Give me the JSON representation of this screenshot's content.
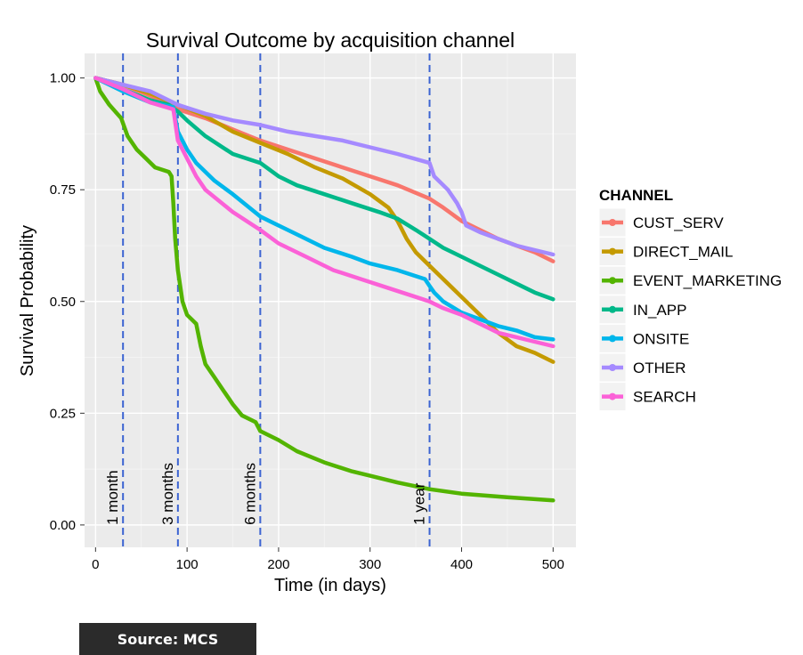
{
  "chart_data": {
    "type": "line",
    "title": "Survival Outcome by acquisition channel",
    "xlabel": "Time (in days)",
    "ylabel": "Survival Probability",
    "xlim": [
      -12,
      525
    ],
    "ylim": [
      -0.05,
      1.055
    ],
    "x_ticks": [
      0,
      100,
      200,
      300,
      400,
      500
    ],
    "x_tick_labels": [
      "0",
      "100",
      "200",
      "300",
      "400",
      "500"
    ],
    "y_ticks": [
      0,
      0.25,
      0.5,
      0.75,
      1.0
    ],
    "y_tick_labels": [
      "0.00",
      "0.25",
      "0.50",
      "0.75",
      "1.00"
    ],
    "grid": true,
    "legend_position": "right",
    "legend_title": "CHANNEL",
    "reference_lines": [
      {
        "x": 30,
        "label": "1 month"
      },
      {
        "x": 90,
        "label": "3 months"
      },
      {
        "x": 180,
        "label": "6 months"
      },
      {
        "x": 365,
        "label": "1 year"
      }
    ],
    "reference_line_color": "#3c64d2",
    "series": [
      {
        "name": "CUST_SERV",
        "color": "#f8766d",
        "points": [
          [
            0,
            1.0
          ],
          [
            30,
            0.985
          ],
          [
            60,
            0.96
          ],
          [
            90,
            0.93
          ],
          [
            120,
            0.91
          ],
          [
            150,
            0.885
          ],
          [
            180,
            0.86
          ],
          [
            210,
            0.84
          ],
          [
            240,
            0.82
          ],
          [
            270,
            0.8
          ],
          [
            300,
            0.78
          ],
          [
            330,
            0.76
          ],
          [
            365,
            0.73
          ],
          [
            380,
            0.71
          ],
          [
            400,
            0.68
          ],
          [
            420,
            0.66
          ],
          [
            440,
            0.64
          ],
          [
            460,
            0.625
          ],
          [
            480,
            0.61
          ],
          [
            500,
            0.59
          ]
        ]
      },
      {
        "name": "DIRECT_MAIL",
        "color": "#c49a00",
        "points": [
          [
            0,
            1.0
          ],
          [
            30,
            0.985
          ],
          [
            60,
            0.965
          ],
          [
            90,
            0.94
          ],
          [
            120,
            0.915
          ],
          [
            150,
            0.88
          ],
          [
            180,
            0.855
          ],
          [
            210,
            0.83
          ],
          [
            240,
            0.8
          ],
          [
            270,
            0.775
          ],
          [
            300,
            0.74
          ],
          [
            320,
            0.71
          ],
          [
            330,
            0.68
          ],
          [
            340,
            0.64
          ],
          [
            350,
            0.61
          ],
          [
            365,
            0.58
          ],
          [
            380,
            0.55
          ],
          [
            400,
            0.51
          ],
          [
            420,
            0.47
          ],
          [
            440,
            0.43
          ],
          [
            460,
            0.4
          ],
          [
            480,
            0.385
          ],
          [
            500,
            0.365
          ]
        ]
      },
      {
        "name": "EVENT_MARKETING",
        "color": "#53b400",
        "points": [
          [
            0,
            1.0
          ],
          [
            5,
            0.97
          ],
          [
            15,
            0.94
          ],
          [
            28,
            0.91
          ],
          [
            35,
            0.87
          ],
          [
            45,
            0.84
          ],
          [
            55,
            0.82
          ],
          [
            65,
            0.8
          ],
          [
            80,
            0.79
          ],
          [
            83,
            0.78
          ],
          [
            85,
            0.72
          ],
          [
            87,
            0.64
          ],
          [
            90,
            0.57
          ],
          [
            95,
            0.5
          ],
          [
            100,
            0.47
          ],
          [
            110,
            0.45
          ],
          [
            115,
            0.4
          ],
          [
            120,
            0.36
          ],
          [
            130,
            0.33
          ],
          [
            140,
            0.3
          ],
          [
            150,
            0.27
          ],
          [
            160,
            0.245
          ],
          [
            175,
            0.23
          ],
          [
            180,
            0.21
          ],
          [
            200,
            0.19
          ],
          [
            220,
            0.165
          ],
          [
            250,
            0.14
          ],
          [
            280,
            0.12
          ],
          [
            300,
            0.11
          ],
          [
            330,
            0.095
          ],
          [
            365,
            0.08
          ],
          [
            400,
            0.07
          ],
          [
            450,
            0.062
          ],
          [
            500,
            0.055
          ]
        ]
      },
      {
        "name": "IN_APP",
        "color": "#00b889",
        "points": [
          [
            0,
            1.0
          ],
          [
            30,
            0.975
          ],
          [
            60,
            0.95
          ],
          [
            80,
            0.94
          ],
          [
            90,
            0.925
          ],
          [
            100,
            0.905
          ],
          [
            120,
            0.87
          ],
          [
            150,
            0.83
          ],
          [
            180,
            0.81
          ],
          [
            200,
            0.78
          ],
          [
            220,
            0.76
          ],
          [
            250,
            0.74
          ],
          [
            280,
            0.72
          ],
          [
            310,
            0.7
          ],
          [
            330,
            0.685
          ],
          [
            350,
            0.66
          ],
          [
            365,
            0.64
          ],
          [
            380,
            0.62
          ],
          [
            400,
            0.6
          ],
          [
            420,
            0.58
          ],
          [
            440,
            0.56
          ],
          [
            460,
            0.54
          ],
          [
            480,
            0.52
          ],
          [
            500,
            0.505
          ]
        ]
      },
      {
        "name": "ONSITE",
        "color": "#00b6eb",
        "points": [
          [
            0,
            1.0
          ],
          [
            30,
            0.97
          ],
          [
            60,
            0.945
          ],
          [
            85,
            0.935
          ],
          [
            90,
            0.88
          ],
          [
            100,
            0.84
          ],
          [
            110,
            0.81
          ],
          [
            130,
            0.77
          ],
          [
            150,
            0.74
          ],
          [
            180,
            0.69
          ],
          [
            200,
            0.67
          ],
          [
            220,
            0.65
          ],
          [
            250,
            0.62
          ],
          [
            280,
            0.6
          ],
          [
            300,
            0.585
          ],
          [
            330,
            0.57
          ],
          [
            360,
            0.55
          ],
          [
            365,
            0.535
          ],
          [
            370,
            0.52
          ],
          [
            380,
            0.5
          ],
          [
            400,
            0.475
          ],
          [
            420,
            0.46
          ],
          [
            440,
            0.445
          ],
          [
            460,
            0.435
          ],
          [
            480,
            0.42
          ],
          [
            500,
            0.415
          ]
        ]
      },
      {
        "name": "OTHER",
        "color": "#a58aff",
        "points": [
          [
            0,
            1.0
          ],
          [
            30,
            0.985
          ],
          [
            60,
            0.97
          ],
          [
            90,
            0.94
          ],
          [
            120,
            0.92
          ],
          [
            150,
            0.905
          ],
          [
            180,
            0.895
          ],
          [
            210,
            0.88
          ],
          [
            240,
            0.87
          ],
          [
            270,
            0.86
          ],
          [
            300,
            0.845
          ],
          [
            330,
            0.83
          ],
          [
            365,
            0.81
          ],
          [
            370,
            0.78
          ],
          [
            385,
            0.75
          ],
          [
            395,
            0.72
          ],
          [
            400,
            0.7
          ],
          [
            405,
            0.67
          ],
          [
            420,
            0.655
          ],
          [
            440,
            0.64
          ],
          [
            460,
            0.625
          ],
          [
            480,
            0.615
          ],
          [
            500,
            0.605
          ]
        ]
      },
      {
        "name": "SEARCH",
        "color": "#fb61d7",
        "points": [
          [
            0,
            1.0
          ],
          [
            30,
            0.975
          ],
          [
            60,
            0.945
          ],
          [
            85,
            0.93
          ],
          [
            90,
            0.86
          ],
          [
            100,
            0.82
          ],
          [
            110,
            0.78
          ],
          [
            120,
            0.75
          ],
          [
            150,
            0.7
          ],
          [
            180,
            0.66
          ],
          [
            200,
            0.63
          ],
          [
            230,
            0.6
          ],
          [
            260,
            0.57
          ],
          [
            290,
            0.55
          ],
          [
            320,
            0.53
          ],
          [
            350,
            0.51
          ],
          [
            365,
            0.5
          ],
          [
            380,
            0.485
          ],
          [
            400,
            0.47
          ],
          [
            420,
            0.45
          ],
          [
            440,
            0.43
          ],
          [
            460,
            0.42
          ],
          [
            480,
            0.41
          ],
          [
            500,
            0.4
          ]
        ]
      }
    ]
  },
  "source_label": "Source: MCS"
}
